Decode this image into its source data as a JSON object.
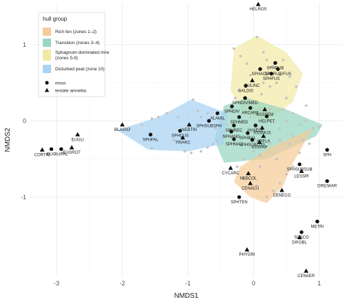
{
  "chart_data": {
    "type": "scatter",
    "xlabel": "NMDS1",
    "ylabel": "NMDS2",
    "xlim": [
      -3.4,
      1.35
    ],
    "ylim": [
      -2.05,
      1.55
    ],
    "x_ticks": [
      -3,
      -2,
      -1,
      0,
      1
    ],
    "y_ticks": [
      -1,
      0,
      1
    ],
    "grid": true,
    "legend": {
      "title": "hull group",
      "placement": "top-left",
      "hull_groups": [
        {
          "name": "Rich fen (zones 1–2)",
          "color": "#f5cc99"
        },
        {
          "name": "Transition (zones 3–4)",
          "color": "#99d5c1"
        },
        {
          "name": "Sphagnum-dominated mire (zones 5-9)",
          "color": "#f2e9a8"
        },
        {
          "name": "Disturbed peat (zone 10)",
          "color": "#a8d3f2"
        }
      ],
      "point_types": [
        {
          "name": "moss",
          "shape": "circle"
        },
        {
          "name": "testate amoeba",
          "shape": "triangle"
        }
      ]
    },
    "hulls": [
      {
        "group": "Sphagnum-dominated mire (zones 5-9)",
        "color": "#f2e9a8",
        "points": [
          [
            -0.3,
            0.95
          ],
          [
            0.05,
            1.12
          ],
          [
            0.5,
            0.9
          ],
          [
            0.75,
            0.62
          ],
          [
            0.6,
            0.25
          ],
          [
            0.2,
            0.0
          ],
          [
            -0.15,
            0.1
          ],
          [
            -0.35,
            0.4
          ]
        ]
      },
      {
        "group": "Transition (zones 3–4)",
        "color": "#99d5c1",
        "points": [
          [
            -0.45,
            0.2
          ],
          [
            -0.1,
            0.3
          ],
          [
            0.5,
            0.15
          ],
          [
            1.05,
            -0.05
          ],
          [
            0.95,
            -0.2
          ],
          [
            0.2,
            -0.5
          ],
          [
            -0.45,
            -0.55
          ],
          [
            -0.6,
            -0.25
          ]
        ]
      },
      {
        "group": "Rich fen (zones 1–2)",
        "color": "#f5cc99",
        "points": [
          [
            -0.2,
            -0.6
          ],
          [
            0.25,
            -0.35
          ],
          [
            0.9,
            -0.1
          ],
          [
            0.6,
            -0.55
          ],
          [
            0.45,
            -0.85
          ],
          [
            0.2,
            -1.08
          ],
          [
            -0.05,
            -1.0
          ],
          [
            -0.3,
            -0.8
          ]
        ]
      },
      {
        "group": "Disturbed peat (zone 10)",
        "color": "#a8d3f2",
        "points": [
          [
            -2.08,
            -0.12
          ],
          [
            -1.45,
            0.05
          ],
          [
            -0.95,
            0.28
          ],
          [
            -0.4,
            0.1
          ],
          [
            -0.45,
            -0.3
          ],
          [
            -1.0,
            -0.4
          ],
          [
            -1.6,
            -0.38
          ]
        ]
      }
    ],
    "background_points": [
      [
        -2.1,
        -0.12
      ],
      [
        -1.88,
        -0.1
      ],
      [
        -1.7,
        -0.05
      ],
      [
        -1.55,
        0.03
      ],
      [
        -1.45,
        0.05
      ],
      [
        -1.32,
        0.1
      ],
      [
        -1.15,
        0.05
      ],
      [
        -1.0,
        -0.05
      ],
      [
        -0.92,
        0.28
      ],
      [
        -0.85,
        0.13
      ],
      [
        -0.8,
        0.05
      ],
      [
        -0.7,
        0.1
      ],
      [
        -0.62,
        0.05
      ],
      [
        -0.58,
        -0.1
      ],
      [
        -1.22,
        -0.25
      ],
      [
        -1.55,
        -0.36
      ],
      [
        -1.05,
        -0.4
      ],
      [
        -0.95,
        -0.42
      ],
      [
        -0.8,
        -0.4
      ],
      [
        -0.7,
        -0.35
      ],
      [
        -0.62,
        -0.3
      ],
      [
        -0.55,
        -0.26
      ],
      [
        -0.45,
        -0.2
      ],
      [
        -0.4,
        -0.05
      ],
      [
        -0.35,
        0.15
      ],
      [
        -0.28,
        0.3
      ],
      [
        -0.22,
        0.4
      ],
      [
        -0.3,
        0.95
      ],
      [
        -0.2,
        0.85
      ],
      [
        -0.1,
        0.75
      ],
      [
        0.05,
        1.1
      ],
      [
        0.15,
        0.9
      ],
      [
        0.3,
        0.72
      ],
      [
        0.45,
        0.8
      ],
      [
        0.55,
        0.58
      ],
      [
        0.35,
        0.5
      ],
      [
        0.25,
        0.45
      ],
      [
        0.12,
        0.35
      ],
      [
        0.0,
        0.25
      ],
      [
        0.1,
        0.15
      ],
      [
        0.2,
        0.05
      ],
      [
        0.3,
        -0.02
      ],
      [
        0.4,
        -0.1
      ],
      [
        0.5,
        0.0
      ],
      [
        0.6,
        0.1
      ],
      [
        0.7,
        -0.05
      ],
      [
        0.8,
        0.0
      ],
      [
        0.9,
        -0.1
      ],
      [
        1.0,
        -0.08
      ],
      [
        0.85,
        -0.3
      ],
      [
        0.7,
        -0.42
      ],
      [
        0.6,
        -0.6
      ],
      [
        0.5,
        -0.7
      ],
      [
        0.4,
        -0.82
      ],
      [
        0.3,
        -0.92
      ],
      [
        0.2,
        -1.0
      ],
      [
        0.1,
        -0.6
      ],
      [
        0.0,
        -0.4
      ],
      [
        -0.1,
        -0.3
      ],
      [
        0.25,
        -0.3
      ],
      [
        0.4,
        -0.25
      ],
      [
        -0.25,
        -0.6
      ],
      [
        -0.15,
        -0.75
      ],
      [
        0.05,
        -0.85
      ],
      [
        0.15,
        -0.2
      ],
      [
        -0.05,
        0.05
      ],
      [
        0.05,
        -0.1
      ],
      [
        0.15,
        0.5
      ],
      [
        0.5,
        0.3
      ],
      [
        0.65,
        0.45
      ],
      [
        0.2,
        0.8
      ],
      [
        0.4,
        0.6
      ],
      [
        -0.05,
        0.6
      ],
      [
        0.35,
        -0.5
      ],
      [
        0.55,
        -0.3
      ],
      [
        0.75,
        -0.25
      ],
      [
        0.1,
        -0.45
      ],
      [
        0.45,
        0.15
      ],
      [
        0.8,
        0.2
      ],
      [
        0.25,
        0.15
      ],
      [
        -0.15,
        -0.5
      ],
      [
        0.6,
        -0.2
      ]
    ],
    "series": [
      {
        "name": "moss",
        "shape": "circle",
        "points": [
          {
            "label": "HELROS",
            "x": 0.07,
            "y": 1.53,
            "shape": "triangle"
          },
          {
            "label": "SPHRUB",
            "x": 0.33,
            "y": 0.76
          },
          {
            "label": "SPHACU",
            "x": 0.1,
            "y": 0.68
          },
          {
            "label": "SPHRUB/FUS",
            "x": 0.37,
            "y": 0.68
          },
          {
            "label": "SPHFUS",
            "x": 0.27,
            "y": 0.62
          },
          {
            "label": "GALDIS",
            "x": -0.12,
            "y": 0.46
          },
          {
            "label": "SPHDIV/MED",
            "x": -0.13,
            "y": 0.3
          },
          {
            "label": "SPHDIV",
            "x": -0.33,
            "y": 0.19
          },
          {
            "label": "ARCARE",
            "x": -0.05,
            "y": 0.17
          },
          {
            "label": "ALAMIL",
            "x": -0.55,
            "y": 0.1
          },
          {
            "label": "SPHMED",
            "x": -0.22,
            "y": 0.05
          },
          {
            "label": "HELPET",
            "x": 0.2,
            "y": 0.06
          },
          {
            "label": "SPHSUBSPH",
            "x": -0.68,
            "y": 0.0
          },
          {
            "label": "SPHREC",
            "x": -0.3,
            "y": -0.06
          },
          {
            "label": "HYAELE",
            "x": 0.03,
            "y": -0.06
          },
          {
            "label": "SPHANG",
            "x": -0.34,
            "y": -0.14
          },
          {
            "label": "SPHBAL",
            "x": -0.09,
            "y": -0.16
          },
          {
            "label": "SPHMAJ",
            "x": -0.3,
            "y": -0.24
          },
          {
            "label": "SPHSUBCUS",
            "x": -0.02,
            "y": -0.25
          },
          {
            "label": "SPHFAL",
            "x": -1.57,
            "y": -0.18
          },
          {
            "label": "SPHCUS",
            "x": -1.12,
            "y": -0.13
          },
          {
            "label": "SPH",
            "x": 1.12,
            "y": -0.38
          },
          {
            "label": "SPHSUBSUB",
            "x": 0.7,
            "y": -0.57
          },
          {
            "label": "DRE/WAR",
            "x": 1.12,
            "y": -0.79
          },
          {
            "label": "SPHTEN",
            "x": -0.22,
            "y": -1.0
          },
          {
            "label": "METRI",
            "x": 0.97,
            "y": -1.32
          },
          {
            "label": "SCSCO",
            "x": 0.73,
            "y": -1.46
          },
          {
            "label": "EUG",
            "x": -3.08,
            "y": -0.37
          },
          {
            "label": "AUPAL",
            "x": -2.93,
            "y": -0.37
          }
        ]
      },
      {
        "name": "testate amoeba",
        "shape": "triangle",
        "points": [
          {
            "label": "BULINC",
            "x": -0.02,
            "y": 0.53
          },
          {
            "label": "ASSSEM",
            "x": 0.17,
            "y": 0.15
          },
          {
            "label": "ASSMUS",
            "x": 0.13,
            "y": -0.09
          },
          {
            "label": "ARFLA",
            "x": 0.15,
            "y": -0.2
          },
          {
            "label": "HYAPAP",
            "x": 0.09,
            "y": -0.28
          },
          {
            "label": "NEBTIN",
            "x": -0.98,
            "y": -0.05
          },
          {
            "label": "TRIARC",
            "x": -1.08,
            "y": -0.22
          },
          {
            "label": "PLAGIO",
            "x": -2.0,
            "y": -0.05
          },
          {
            "label": "EUGLI",
            "x": -2.68,
            "y": -0.18
          },
          {
            "label": "EUGROT",
            "x": -2.77,
            "y": -0.35
          },
          {
            "label": "CORTRI",
            "x": -3.22,
            "y": -0.38
          },
          {
            "label": "CYCARC",
            "x": -0.35,
            "y": -0.62
          },
          {
            "label": "NEBCOL",
            "x": -0.08,
            "y": -0.69
          },
          {
            "label": "LESSPI",
            "x": 0.73,
            "y": -0.66
          },
          {
            "label": "CENACU",
            "x": -0.05,
            "y": -0.82
          },
          {
            "label": "CENECO",
            "x": 0.43,
            "y": -0.91
          },
          {
            "label": "DIFOBL",
            "x": 0.7,
            "y": -1.53
          },
          {
            "label": "PHYGRI",
            "x": -0.1,
            "y": -1.69
          },
          {
            "label": "CENAER",
            "x": 0.8,
            "y": -1.97
          }
        ]
      }
    ]
  }
}
